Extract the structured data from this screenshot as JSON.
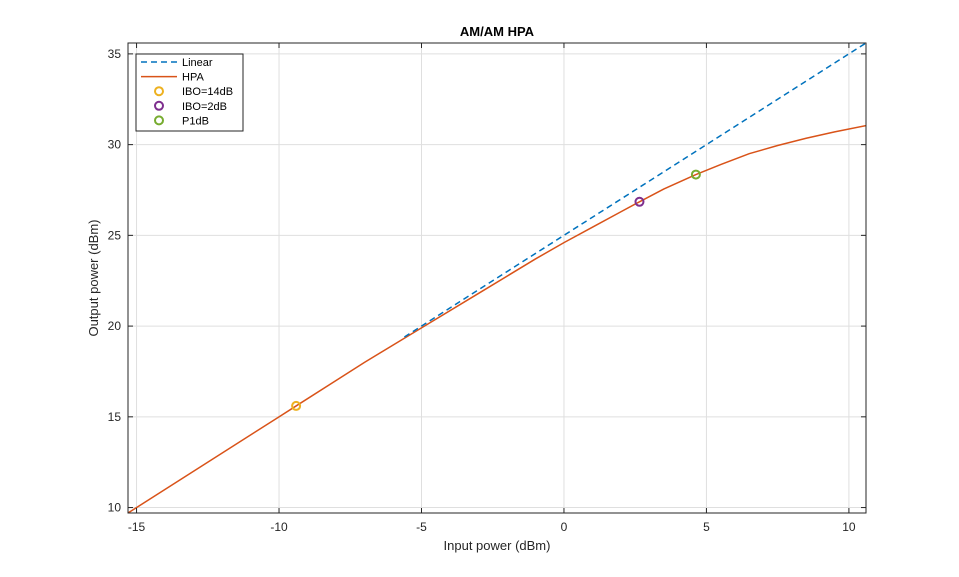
{
  "chart_data": {
    "type": "line",
    "title": "AM/AM HPA",
    "xlabel": "Input power (dBm)",
    "ylabel": "Output power (dBm)",
    "xlim": [
      -15.3,
      10.6
    ],
    "ylim": [
      9.7,
      35.6
    ],
    "xticks": [
      -15,
      -10,
      -5,
      0,
      5,
      10
    ],
    "yticks": [
      10,
      15,
      20,
      25,
      30,
      35
    ],
    "grid": true,
    "legend_position": "top-left",
    "series": [
      {
        "name": "Linear",
        "style": "dashed",
        "color": "#0072BD",
        "x": [
          -5.6,
          10.6
        ],
        "y": [
          19.4,
          35.6
        ]
      },
      {
        "name": "HPA",
        "style": "solid",
        "color": "#D95319",
        "x": [
          -15.3,
          -10,
          -9.4,
          -7,
          -5,
          -3,
          -1,
          0,
          1,
          2,
          2.65,
          3.5,
          4.63,
          5.5,
          6.5,
          7.5,
          8.5,
          9.5,
          10.6
        ],
        "y": [
          9.7,
          15.0,
          15.6,
          18.0,
          19.9,
          21.8,
          23.7,
          24.6,
          25.45,
          26.3,
          26.85,
          27.55,
          28.35,
          28.9,
          29.5,
          29.95,
          30.35,
          30.7,
          31.05
        ]
      },
      {
        "name": "IBO=14dB",
        "style": "marker",
        "color": "#EDB120",
        "x": [
          -9.4
        ],
        "y": [
          15.6
        ]
      },
      {
        "name": "IBO=2dB",
        "style": "marker",
        "color": "#7E2F8E",
        "x": [
          2.65
        ],
        "y": [
          26.85
        ]
      },
      {
        "name": "P1dB",
        "style": "marker",
        "color": "#77AC30",
        "x": [
          4.63
        ],
        "y": [
          28.35
        ]
      }
    ]
  }
}
